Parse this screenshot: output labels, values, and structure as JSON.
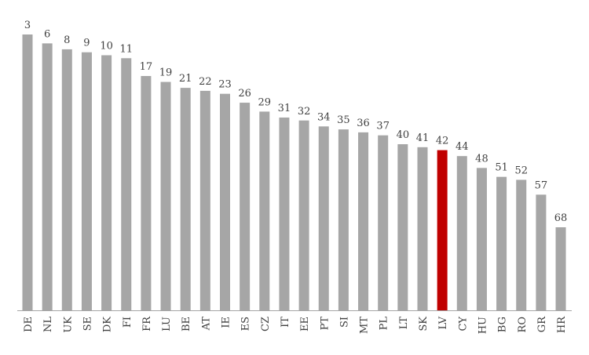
{
  "chart_data": {
    "type": "bar",
    "categories": [
      "DE",
      "NL",
      "UK",
      "SE",
      "DK",
      "FI",
      "FR",
      "LU",
      "BE",
      "AT",
      "IE",
      "ES",
      "CZ",
      "IT",
      "EE",
      "PT",
      "SI",
      "MT",
      "PL",
      "LT",
      "SK",
      "LV",
      "CY",
      "HU",
      "BG",
      "RO",
      "GR",
      "HR"
    ],
    "values": [
      3,
      6,
      8,
      9,
      10,
      11,
      17,
      19,
      21,
      22,
      23,
      26,
      29,
      31,
      32,
      34,
      35,
      36,
      37,
      40,
      41,
      42,
      44,
      48,
      51,
      52,
      57,
      68
    ],
    "highlight_category": "LV",
    "colors": {
      "bar": "#a6a6a6",
      "highlight": "#c00000",
      "axis": "#a6a6a6",
      "text": "#404040"
    },
    "title": "",
    "xlabel": "",
    "ylabel": "",
    "axis_reversed": true,
    "grid": false,
    "legend": "none"
  }
}
